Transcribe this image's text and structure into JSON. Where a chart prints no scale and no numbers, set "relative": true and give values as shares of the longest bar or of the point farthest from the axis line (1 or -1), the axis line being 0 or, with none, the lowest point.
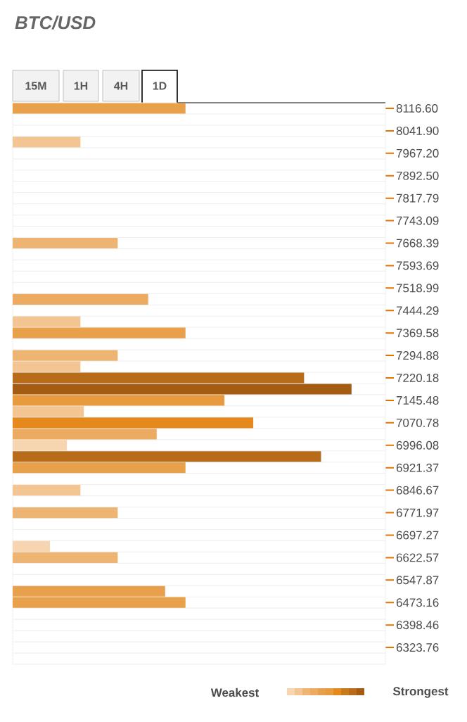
{
  "chart_data": {
    "type": "bar",
    "orientation": "horizontal",
    "relative": true,
    "title": "BTC/USD",
    "annotations": [
      "15M",
      "1H",
      "4H",
      "1D",
      "Weakest",
      "Strongest"
    ],
    "categories": [
      "8116.60",
      null,
      "8041.90",
      null,
      "7967.20",
      null,
      "7892.50",
      null,
      "7817.79",
      null,
      "7743.09",
      null,
      "7668.39",
      null,
      "7593.69",
      null,
      "7518.99",
      null,
      "7444.29",
      null,
      "7369.58",
      null,
      "7294.88",
      null,
      "7220.18",
      null,
      "7145.48",
      null,
      "7070.78",
      null,
      "6996.08",
      null,
      "6921.37",
      null,
      "6846.67",
      null,
      "6771.97",
      null,
      "6697.27",
      null,
      "6622.57",
      null,
      "6547.87",
      null,
      "6473.16",
      null,
      "6398.46",
      null,
      "6323.76",
      null
    ],
    "values": [
      0.51,
      null,
      null,
      0.2,
      null,
      null,
      null,
      null,
      null,
      null,
      null,
      null,
      0.31,
      null,
      null,
      null,
      null,
      0.4,
      null,
      0.2,
      0.51,
      null,
      0.31,
      0.2,
      0.86,
      1,
      0.625,
      0.21,
      0.71,
      0.425,
      0.16,
      0.91,
      0.51,
      null,
      0.2,
      null,
      0.31,
      null,
      null,
      0.11,
      0.31,
      null,
      null,
      0.45,
      0.51,
      null,
      null,
      null,
      null,
      null
    ],
    "colors": [
      "#e8a04a",
      null,
      null,
      "#f3c593",
      null,
      null,
      null,
      null,
      null,
      null,
      null,
      null,
      "#eeb572",
      null,
      null,
      null,
      null,
      "#ecab60",
      null,
      "#f3c593",
      "#e8a04a",
      null,
      "#eeb572",
      "#f3c593",
      "#b86b18",
      "#a35c12",
      "#e89a3e",
      "#f3c593",
      "#e5891c",
      "#ecab60",
      "#f6d5b0",
      "#b86b18",
      "#e8a04a",
      null,
      "#f3c593",
      null,
      "#eeb572",
      null,
      null,
      "#f6d5b0",
      "#eeb572",
      null,
      null,
      "#e9a04c",
      "#e8a04a",
      null,
      null,
      null,
      null,
      null
    ]
  }
}
